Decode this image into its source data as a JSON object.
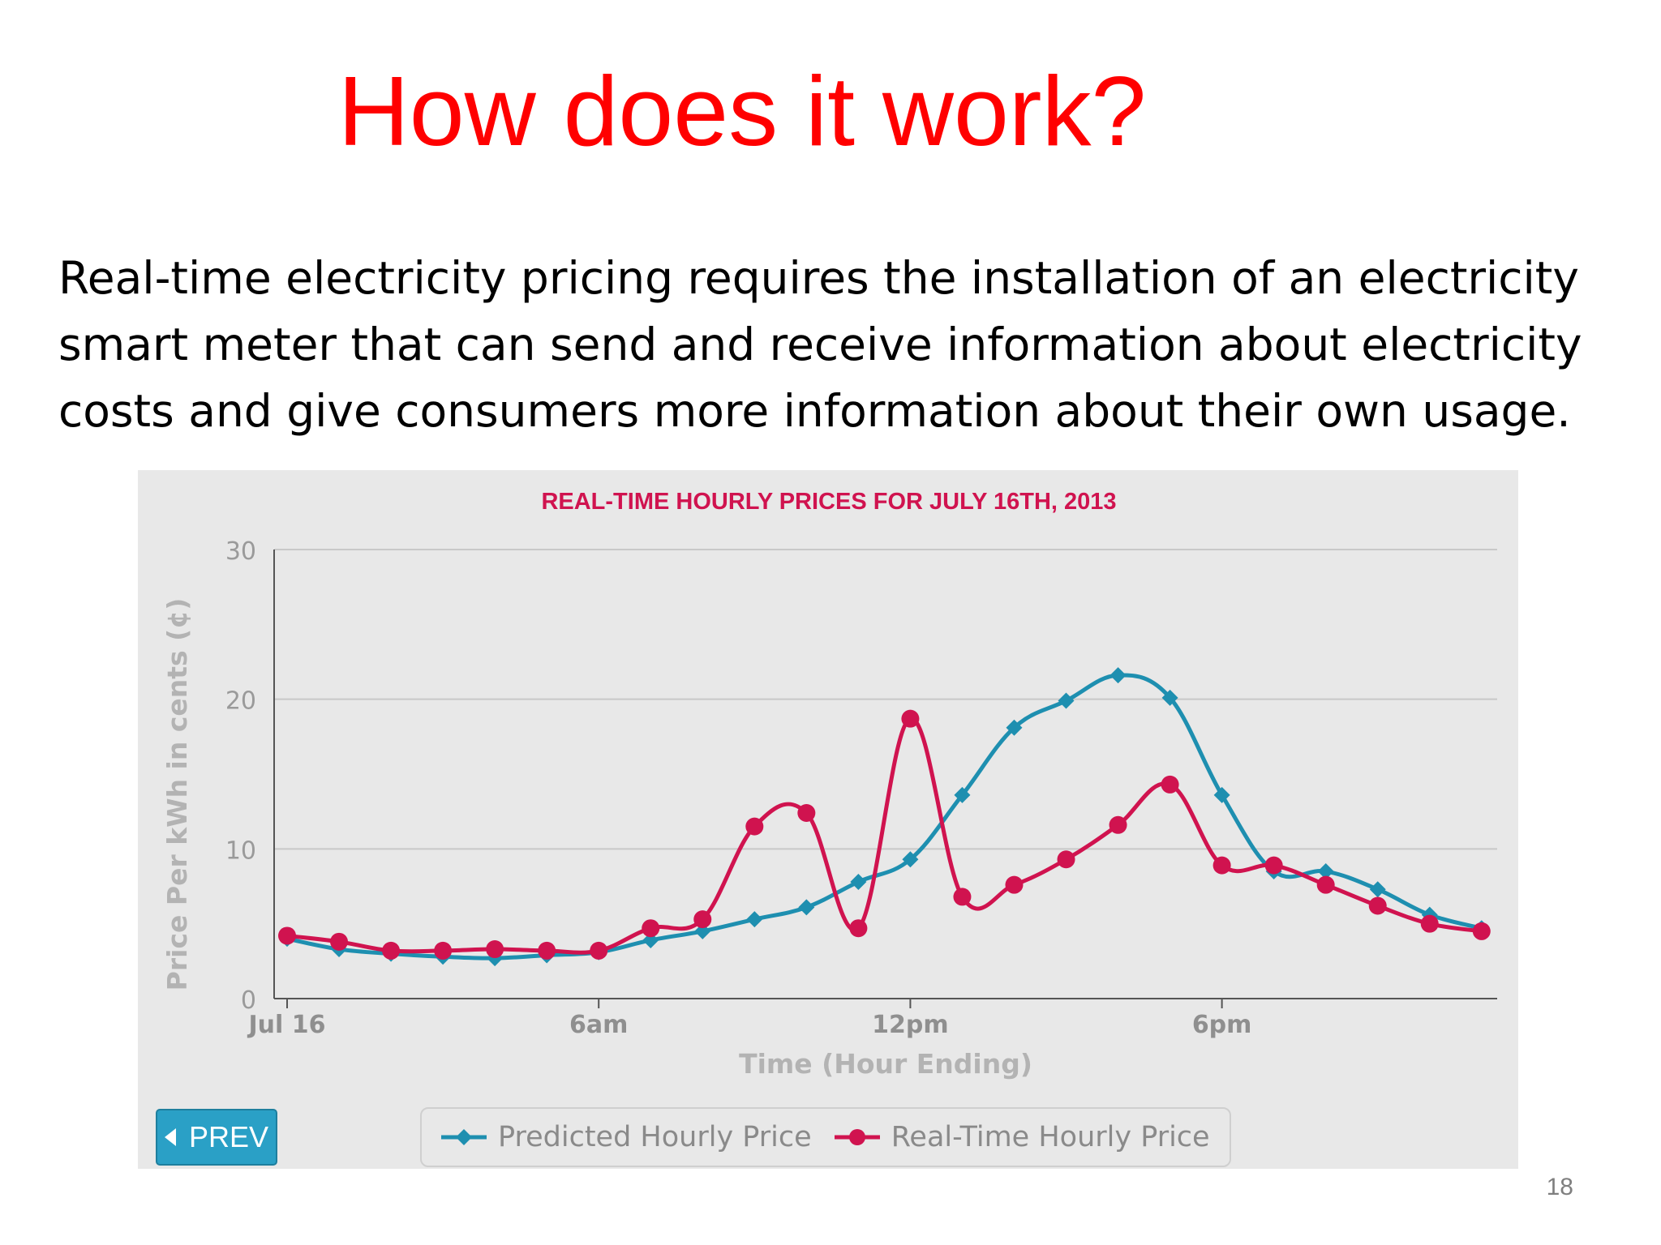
{
  "slide": {
    "title": "How does it work?",
    "body_lines": [
      "Real-time electricity pricing requires the installation of an electricity",
      "smart meter that can send and receive information about electricity",
      "costs and give consumers more information about their own usage."
    ],
    "page_number": "18"
  },
  "prev_button": {
    "label": "PREV",
    "icon": "caret-left-icon"
  },
  "colors": {
    "title": "#ff0000",
    "panel_bg": "#e8e8e8",
    "predicted": "#1e8fb0",
    "realtime": "#d0134f",
    "chart_title": "#d0134f",
    "axis_text": "#9a9a9a"
  },
  "chart_data": {
    "type": "line",
    "title": "REAL-TIME HOURLY PRICES FOR JULY 16TH, 2013",
    "xlabel": "Time (Hour Ending)",
    "ylabel": "Price Per kWh in cents (¢)",
    "ylim": [
      0,
      30
    ],
    "yticks": [
      0,
      10,
      20,
      30
    ],
    "xlim": [
      0,
      23.3
    ],
    "xticks": [
      {
        "x": 0,
        "label": "Jul 16"
      },
      {
        "x": 6,
        "label": "6am"
      },
      {
        "x": 12,
        "label": "12pm"
      },
      {
        "x": 18,
        "label": "6pm"
      }
    ],
    "grid": true,
    "legend_position": "bottom",
    "x": [
      0,
      1,
      2,
      3,
      4,
      5,
      6,
      7,
      8,
      9,
      10,
      11,
      12,
      13,
      14,
      15,
      16,
      17,
      18,
      19,
      20,
      21,
      22,
      23
    ],
    "series": [
      {
        "name": "Predicted Hourly Price",
        "marker": "diamond",
        "values": [
          4.0,
          3.3,
          3.0,
          2.8,
          2.7,
          2.9,
          3.1,
          3.9,
          4.5,
          5.3,
          6.1,
          7.8,
          9.3,
          13.6,
          18.1,
          19.9,
          21.6,
          20.1,
          13.6,
          8.5,
          8.5,
          7.3,
          5.6,
          4.7
        ]
      },
      {
        "name": "Real-Time Hourly Price",
        "marker": "circle",
        "values": [
          4.2,
          3.8,
          3.2,
          3.2,
          3.3,
          3.2,
          3.2,
          4.7,
          5.3,
          11.5,
          12.4,
          4.7,
          18.7,
          6.8,
          7.6,
          9.3,
          11.6,
          14.3,
          8.9,
          8.9,
          7.6,
          6.2,
          5.0,
          4.5
        ]
      }
    ]
  }
}
